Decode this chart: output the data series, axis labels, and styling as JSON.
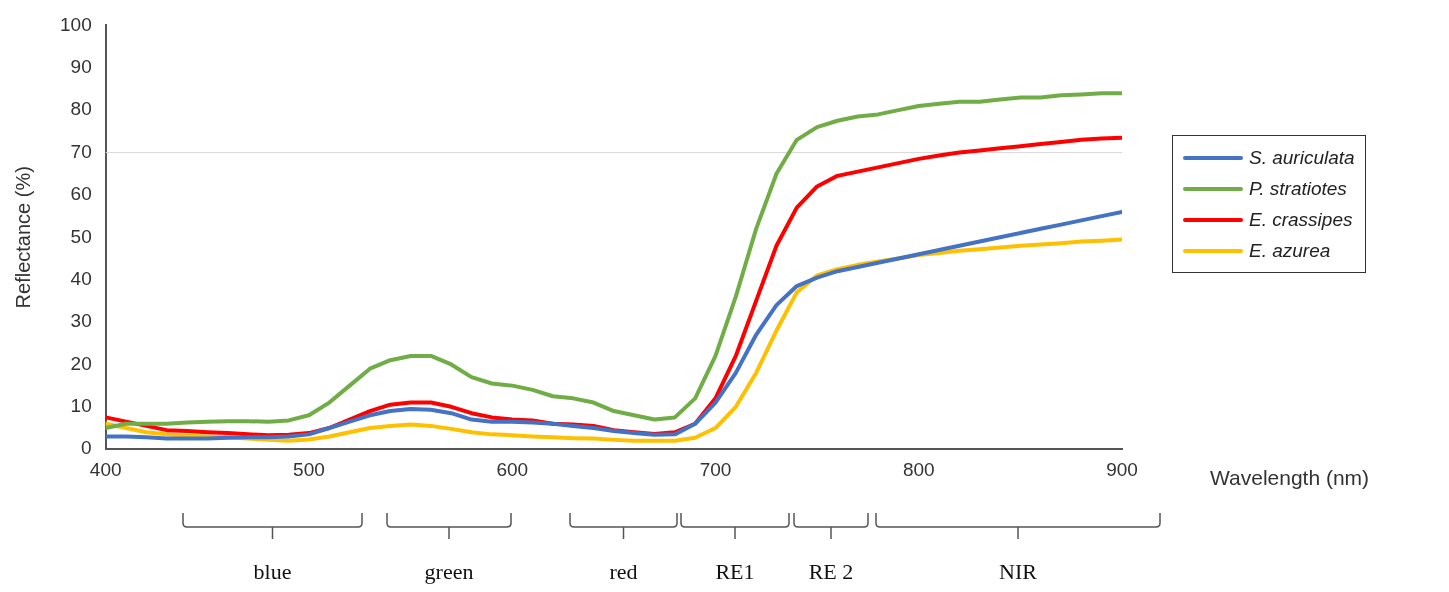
{
  "chart_data": {
    "type": "line",
    "xlabel": "Wavelength (nm)",
    "ylabel": "Reflectance (%)",
    "x": [
      400,
      410,
      420,
      430,
      440,
      450,
      460,
      470,
      480,
      490,
      500,
      510,
      520,
      530,
      540,
      550,
      560,
      570,
      580,
      590,
      600,
      610,
      620,
      630,
      640,
      650,
      660,
      670,
      680,
      690,
      700,
      710,
      720,
      730,
      740,
      750,
      760,
      770,
      780,
      790,
      800,
      810,
      820,
      830,
      840,
      850,
      860,
      870,
      880,
      890,
      900
    ],
    "series": [
      {
        "name": "S. auriculata",
        "color": "#4472c4",
        "values": [
          3,
          3,
          2.8,
          2.5,
          2.5,
          2.5,
          2.7,
          2.8,
          2.8,
          3,
          3.5,
          5,
          6.5,
          8,
          9,
          9.5,
          9.3,
          8.5,
          7,
          6.5,
          6.5,
          6.3,
          6,
          5.5,
          5,
          4.3,
          3.8,
          3.4,
          3.5,
          6,
          11,
          18,
          27,
          34,
          38.5,
          40.5,
          42,
          43,
          44,
          45,
          46,
          47,
          48,
          49,
          50,
          51,
          52,
          53,
          54,
          55,
          56
        ]
      },
      {
        "name": "P. stratiotes",
        "color": "#70ad47",
        "values": [
          5,
          6,
          6,
          6,
          6.3,
          6.5,
          6.6,
          6.6,
          6.5,
          6.8,
          8,
          11,
          15,
          19,
          21,
          22,
          22,
          20,
          17,
          15.5,
          15,
          14,
          12.5,
          12,
          11,
          9,
          8,
          7,
          7.5,
          12,
          22,
          36,
          52,
          65,
          73,
          76,
          77.5,
          78.5,
          79,
          80,
          81,
          81.5,
          82,
          82,
          82.5,
          83,
          83,
          83.5,
          83.7,
          84,
          84
        ]
      },
      {
        "name": "E. crassipes",
        "color": "#ff0000",
        "values": [
          7.5,
          6.5,
          5.5,
          4.5,
          4.3,
          4,
          3.8,
          3.5,
          3.3,
          3.4,
          3.8,
          5,
          7,
          9,
          10.5,
          11,
          11,
          10,
          8.5,
          7.5,
          7,
          6.8,
          6,
          5.8,
          5.5,
          4.5,
          4,
          3.6,
          4,
          6,
          12,
          22,
          35,
          48,
          57,
          62,
          64.5,
          65.5,
          66.5,
          67.5,
          68.5,
          69.3,
          70,
          70.5,
          71,
          71.5,
          72,
          72.5,
          73,
          73.3,
          73.5
        ]
      },
      {
        "name": "E. azurea",
        "color": "#ffc000",
        "values": [
          6,
          5,
          4,
          3.5,
          3.2,
          3,
          2.8,
          2.5,
          2.2,
          2,
          2.3,
          3,
          4,
          5,
          5.5,
          5.8,
          5.5,
          4.8,
          4,
          3.5,
          3.3,
          3,
          2.8,
          2.6,
          2.5,
          2.2,
          2,
          2,
          2,
          2.7,
          5,
          10,
          18,
          28,
          37,
          41,
          42.5,
          43.5,
          44.3,
          45,
          45.8,
          46.3,
          46.8,
          47.2,
          47.6,
          48,
          48.3,
          48.6,
          49,
          49.2,
          49.5
        ]
      }
    ],
    "xlim": [
      400,
      900
    ],
    "xticks": [
      400,
      500,
      600,
      700,
      800,
      900
    ],
    "ylim": [
      0,
      100
    ],
    "yticks": [
      0,
      10,
      20,
      30,
      40,
      50,
      60,
      70,
      80,
      90,
      100
    ],
    "ref_lines": [
      {
        "axis": "y",
        "value": 70,
        "color": "#d9d9d9"
      }
    ],
    "annotations": [
      "blue",
      "green",
      "red",
      "RE1",
      "RE 2",
      "NIR"
    ],
    "grid": false,
    "legend": "right",
    "marker": "none",
    "line_style": "solid"
  }
}
